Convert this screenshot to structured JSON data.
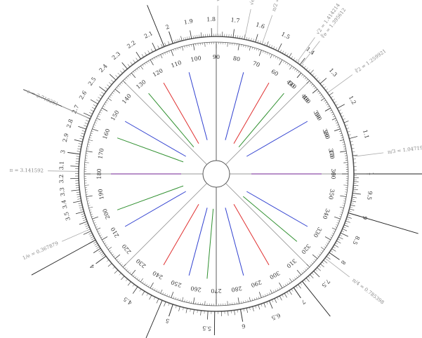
{
  "outer_scale": {
    "labels": [
      "1",
      "1.1",
      "1.2",
      "1.3",
      "1.4",
      "1.5",
      "1.6",
      "1.7",
      "1.8",
      "1.9",
      "2",
      "2.1",
      "2.2",
      "2.3",
      "2.4",
      "2.5",
      "2.6",
      "2.7",
      "2.8",
      "2.9",
      "3",
      "3.1",
      "3.2",
      "3.3",
      "3.4",
      "3.5",
      "4",
      "4.5",
      "5",
      "5.5",
      "6",
      "6.5",
      "7",
      "7.5",
      "8",
      "8.5",
      "9",
      "9.5"
    ]
  },
  "inner_scale": {
    "labels": [
      "0",
      "10",
      "20",
      "30",
      "40",
      "50",
      "60",
      "70",
      "80",
      "90",
      "100",
      "110",
      "120",
      "130",
      "140",
      "150",
      "160",
      "170",
      "180",
      "190",
      "200",
      "210",
      "220",
      "230",
      "240",
      "250",
      "260",
      "270",
      "280",
      "290",
      "300",
      "310",
      "320",
      "330",
      "340",
      "350",
      "360",
      "370",
      "380",
      "390",
      "400",
      "410"
    ]
  },
  "constants": [
    {
      "label": "π/3 = 1.047197"
    },
    {
      "label": "π/2 = 1.5708"
    },
    {
      "label": "√e = 1.648721"
    },
    {
      "label": "√2 = 1.414214"
    },
    {
      "label": "∛2 = 1.259921"
    },
    {
      "label": "∛e = 1.395612"
    },
    {
      "label": "√π = 1.772454"
    },
    {
      "label": "e = 2.718281"
    },
    {
      "label": "π = 3.141592"
    },
    {
      "label": "π/4 = 0.785398"
    },
    {
      "label": "1/e = 0.367879"
    }
  ],
  "colors": {
    "line": "#555555",
    "red": "#e03030",
    "blue": "#3040d0",
    "green": "#309030",
    "purple": "#702090",
    "label": "#333333",
    "constant": "#888888"
  }
}
